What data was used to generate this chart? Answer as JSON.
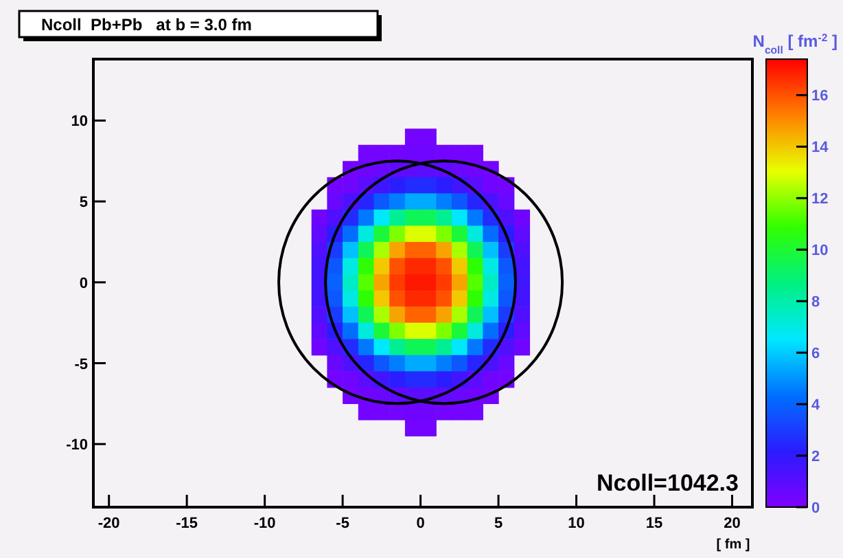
{
  "chart_data": {
    "type": "heatmap",
    "title": "Ncoll  Pb+Pb   at b = 3.0 fm",
    "xlabel": "[ fm ]",
    "clabel": "N$_{coll}$ [ fm$^{-2}$ ]",
    "annotations": [
      "Ncoll=1042.3"
    ],
    "x": [
      -7.5,
      -6.5,
      -5.5,
      -4.5,
      -3.5,
      -2.5,
      -1.5,
      -0.5,
      0.5,
      1.5,
      2.5,
      3.5,
      4.5,
      5.5,
      6.5,
      7.5
    ],
    "y": [
      9,
      8,
      7,
      6,
      5,
      4,
      3,
      2,
      1,
      0,
      -1,
      -2,
      -3,
      -4,
      -5,
      -6,
      -7,
      -8,
      -9
    ],
    "cells": [
      [
        null,
        null,
        null,
        null,
        null,
        null,
        null,
        0.3,
        0.3,
        null,
        null,
        null,
        null,
        null,
        null,
        null
      ],
      [
        null,
        null,
        null,
        null,
        0.3,
        0.3,
        0.3,
        0.4,
        0.4,
        0.3,
        0.3,
        0.3,
        null,
        null,
        null,
        null
      ],
      [
        null,
        null,
        null,
        0.3,
        0.4,
        0.6,
        0.8,
        0.9,
        0.9,
        0.8,
        0.6,
        0.4,
        0.3,
        null,
        null,
        null
      ],
      [
        null,
        null,
        0.3,
        0.4,
        0.9,
        1.6,
        2.2,
        2.6,
        2.6,
        2.2,
        1.6,
        0.9,
        0.4,
        0.3,
        null,
        null
      ],
      [
        null,
        null,
        0.6,
        1.3,
        2.4,
        3.7,
        4.6,
        5.4,
        5.4,
        4.6,
        3.7,
        2.4,
        1.3,
        0.6,
        null,
        null
      ],
      [
        null,
        0.4,
        1.2,
        2.6,
        4.5,
        6.6,
        8.4,
        9.4,
        9.4,
        8.4,
        6.6,
        4.5,
        2.6,
        1.2,
        0.4,
        null
      ],
      [
        null,
        0.8,
        2.2,
        4.3,
        7.1,
        9.9,
        11.8,
        12.9,
        12.9,
        11.8,
        9.9,
        7.1,
        4.3,
        2.2,
        0.8,
        null
      ],
      [
        null,
        1.2,
        3,
        5.8,
        9.4,
        12.3,
        14.6,
        15.7,
        15.7,
        14.6,
        12.3,
        9.4,
        5.8,
        3,
        1.2,
        null
      ],
      [
        null,
        1.5,
        3.7,
        7,
        10.8,
        14,
        16,
        16.7,
        16.7,
        16,
        14,
        10.8,
        7,
        3.7,
        1.5,
        null
      ],
      [
        null,
        1.6,
        4,
        7.5,
        11.3,
        14.6,
        16.4,
        17,
        17,
        16.4,
        14.6,
        11.3,
        7.5,
        4,
        1.6,
        null
      ],
      [
        null,
        1.5,
        3.7,
        7,
        10.8,
        14,
        16,
        16.7,
        16.7,
        16,
        14,
        10.8,
        7,
        3.7,
        1.5,
        null
      ],
      [
        null,
        1.2,
        3,
        5.8,
        9.4,
        12.3,
        14.6,
        15.7,
        15.7,
        14.6,
        12.3,
        9.4,
        5.8,
        3,
        1.2,
        null
      ],
      [
        null,
        0.8,
        2.2,
        4.3,
        7.1,
        9.9,
        11.8,
        12.9,
        12.9,
        11.8,
        9.9,
        7.1,
        4.3,
        2.2,
        0.8,
        null
      ],
      [
        null,
        0.4,
        1.2,
        2.6,
        4.5,
        6.6,
        8.4,
        9.4,
        9.4,
        8.4,
        6.6,
        4.5,
        2.6,
        1.2,
        0.4,
        null
      ],
      [
        null,
        null,
        0.6,
        1.3,
        2.4,
        3.7,
        4.6,
        5.4,
        5.4,
        4.6,
        3.7,
        2.4,
        1.3,
        0.6,
        null,
        null
      ],
      [
        null,
        null,
        0.3,
        0.4,
        0.9,
        1.6,
        2.2,
        2.6,
        2.6,
        2.2,
        1.6,
        0.9,
        0.4,
        0.3,
        null,
        null
      ],
      [
        null,
        null,
        null,
        0.3,
        0.4,
        0.6,
        0.8,
        0.9,
        0.9,
        0.8,
        0.6,
        0.4,
        0.3,
        null,
        null,
        null
      ],
      [
        null,
        null,
        null,
        null,
        0.3,
        0.3,
        0.3,
        0.4,
        0.4,
        0.3,
        0.3,
        0.3,
        null,
        null,
        null,
        null
      ],
      [
        null,
        null,
        null,
        null,
        null,
        null,
        null,
        0.3,
        0.3,
        null,
        null,
        null,
        null,
        null,
        null,
        null
      ]
    ],
    "colors": [
      "#7f00ff",
      "#2a1cff",
      "#0070ff",
      "#00e8ff",
      "#00f080",
      "#30ff00",
      "#e8ff00",
      "#ff8000",
      "#ff0000"
    ],
    "clim": [
      0,
      17.4
    ],
    "cticks": [
      0,
      2,
      4,
      6,
      8,
      10,
      12,
      14,
      16
    ],
    "xlim": [
      -21,
      21.3
    ],
    "xticks": [
      -20,
      -15,
      -10,
      -5,
      0,
      5,
      10,
      15,
      20
    ],
    "ylim": [
      -13.9,
      13.8
    ],
    "yticks": [
      -10,
      -5,
      0,
      5,
      10
    ],
    "grid": false
  }
}
